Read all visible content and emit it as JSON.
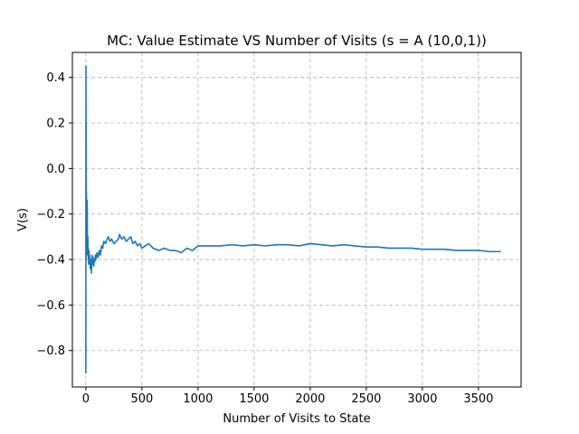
{
  "chart_data": {
    "type": "line",
    "title": "MC: Value Estimate VS Number of Visits (s = A (10,0,1))",
    "xlabel": "Number of Visits to State",
    "ylabel": "V(s)",
    "xlim": [
      -120,
      3880
    ],
    "ylim": [
      -0.96,
      0.51
    ],
    "xticks": [
      0,
      500,
      1000,
      1500,
      2000,
      2500,
      3000,
      3500
    ],
    "yticks": [
      -0.8,
      -0.6,
      -0.4,
      -0.2,
      0.0,
      0.2,
      0.4
    ],
    "ytick_labels": [
      "−0.8",
      "−0.6",
      "−0.4",
      "−0.2",
      "0.0",
      "0.2",
      "0.4"
    ],
    "grid": true,
    "line_color": "#1f77b4",
    "series": [
      {
        "x": [
          0,
          1,
          2,
          3,
          4,
          5,
          6,
          7,
          8,
          9,
          10,
          12,
          14,
          16,
          18,
          20,
          22,
          25,
          28,
          30,
          33,
          36,
          40,
          45,
          50,
          55,
          60,
          65,
          70,
          75,
          80,
          85,
          90,
          100,
          110,
          120,
          130,
          140,
          150,
          160,
          175,
          190,
          200,
          215,
          230,
          250,
          270,
          290,
          300,
          320,
          340,
          360,
          380,
          400,
          420,
          440,
          460,
          480,
          500,
          530,
          560,
          600,
          650,
          700,
          750,
          800,
          850,
          900,
          950,
          1000,
          1100,
          1200,
          1300,
          1400,
          1500,
          1600,
          1700,
          1800,
          1900,
          2000,
          2100,
          2200,
          2300,
          2400,
          2500,
          2600,
          2700,
          2800,
          2900,
          3000,
          3100,
          3200,
          3300,
          3400,
          3500,
          3600,
          3700
        ],
        "y": [
          -0.9,
          0.45,
          -0.3,
          0.2,
          -0.4,
          -0.1,
          -0.35,
          -0.2,
          -0.38,
          -0.3,
          -0.33,
          -0.14,
          -0.34,
          -0.36,
          -0.3,
          -0.38,
          -0.35,
          -0.42,
          -0.36,
          -0.4,
          -0.38,
          -0.41,
          -0.44,
          -0.4,
          -0.46,
          -0.38,
          -0.42,
          -0.39,
          -0.43,
          -0.4,
          -0.41,
          -0.38,
          -0.4,
          -0.37,
          -0.39,
          -0.36,
          -0.38,
          -0.34,
          -0.35,
          -0.32,
          -0.33,
          -0.31,
          -0.3,
          -0.32,
          -0.31,
          -0.33,
          -0.32,
          -0.31,
          -0.29,
          -0.31,
          -0.3,
          -0.32,
          -0.31,
          -0.3,
          -0.33,
          -0.32,
          -0.34,
          -0.33,
          -0.35,
          -0.34,
          -0.33,
          -0.35,
          -0.36,
          -0.35,
          -0.36,
          -0.36,
          -0.37,
          -0.35,
          -0.36,
          -0.34,
          -0.34,
          -0.34,
          -0.335,
          -0.34,
          -0.335,
          -0.34,
          -0.335,
          -0.335,
          -0.34,
          -0.33,
          -0.335,
          -0.34,
          -0.335,
          -0.34,
          -0.345,
          -0.345,
          -0.35,
          -0.35,
          -0.35,
          -0.355,
          -0.355,
          -0.355,
          -0.36,
          -0.36,
          -0.36,
          -0.365,
          -0.365
        ]
      }
    ]
  }
}
